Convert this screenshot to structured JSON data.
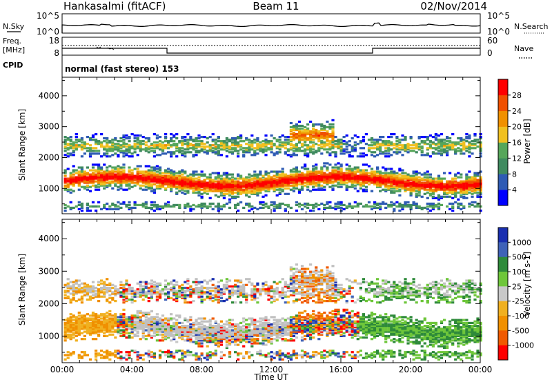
{
  "header": {
    "station": "Hankasalmi (fitACF)",
    "beam": "Beam 11",
    "date": "02/Nov/2014"
  },
  "top_panels": {
    "nsky_label": "N.Sky",
    "nsky_ticks": [
      "10^5",
      "10^0"
    ],
    "nsearch_label": "N.Search",
    "nsearch_ticks": [
      "10^5",
      "10^0"
    ],
    "freq_label": "Freq.",
    "freq_unit": "[MHz]",
    "freq_ticks": [
      "18",
      "8"
    ],
    "nave_label": "Nave",
    "nave_ticks": [
      "60",
      "0"
    ],
    "cpid_label": "CPID",
    "cpid_text": "normal (fast stereo) 153"
  },
  "colors": {
    "power": [
      "#0000ff",
      "#2e5bb4",
      "#3f8a5f",
      "#56a65a",
      "#f0c020",
      "#f09000",
      "#f05000",
      "#ff0000"
    ],
    "velocity": [
      "#1a2fb0",
      "#3f62b8",
      "#2e8a3a",
      "#6ec63a",
      "#c8c8c8",
      "#f0b020",
      "#f09000",
      "#f05a00",
      "#ff0000"
    ],
    "ground_scatter": "#c0c0c0"
  },
  "chart_data": [
    {
      "type": "heatmap",
      "title": "Power",
      "ylabel": "Slant Range [km]",
      "ylim": [
        180,
        4600
      ],
      "yticks": [
        "1000",
        "2000",
        "3000",
        "4000"
      ],
      "xlim": [
        "00:00",
        "24:00"
      ],
      "colorbar_label": "Power [dB]",
      "colorbar_ticks": [
        "4",
        "8",
        "12",
        "16",
        "20",
        "24",
        "28"
      ]
    },
    {
      "type": "heatmap",
      "title": "Velocity",
      "ylabel": "Slant Range [km]",
      "ylim": [
        180,
        4600
      ],
      "yticks": [
        "1000",
        "2000",
        "3000",
        "4000"
      ],
      "xlim": [
        "00:00",
        "24:00"
      ],
      "colorbar_label": "Velocity [m s-1]",
      "colorbar_ticks": [
        "1000",
        "500",
        "100",
        "25",
        "-25",
        "-100",
        "-500",
        "-1000"
      ]
    }
  ],
  "xaxis": {
    "ticks": [
      "00:00",
      "04:00",
      "08:00",
      "12:00",
      "16:00",
      "20:00",
      "00:00"
    ],
    "label": "Time UT"
  }
}
